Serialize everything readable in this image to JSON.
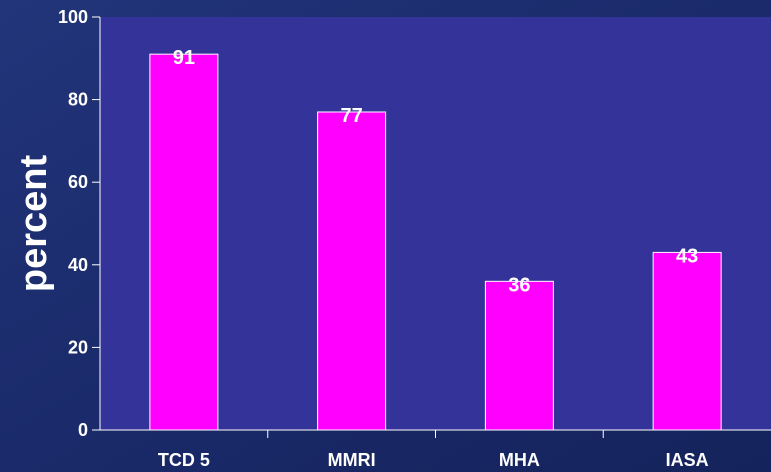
{
  "chart_data": {
    "type": "bar",
    "categories": [
      "TCD 5",
      "MMRI",
      "MHA",
      "IASA"
    ],
    "values": [
      91,
      77,
      36,
      43
    ],
    "data_labels": [
      "91",
      "77",
      "36",
      "43"
    ],
    "ylabel": "percent",
    "xlabel": "",
    "ylim": [
      0,
      100
    ],
    "yticks": [
      0,
      20,
      40,
      60,
      80,
      100
    ],
    "grid": false,
    "colors": {
      "background": "#1a2a6a",
      "plot_area": "#333399",
      "bar": "#ff00ff",
      "bar_edge": "#ffffff",
      "axis": "#ffffff",
      "text": "#ffffff"
    }
  }
}
